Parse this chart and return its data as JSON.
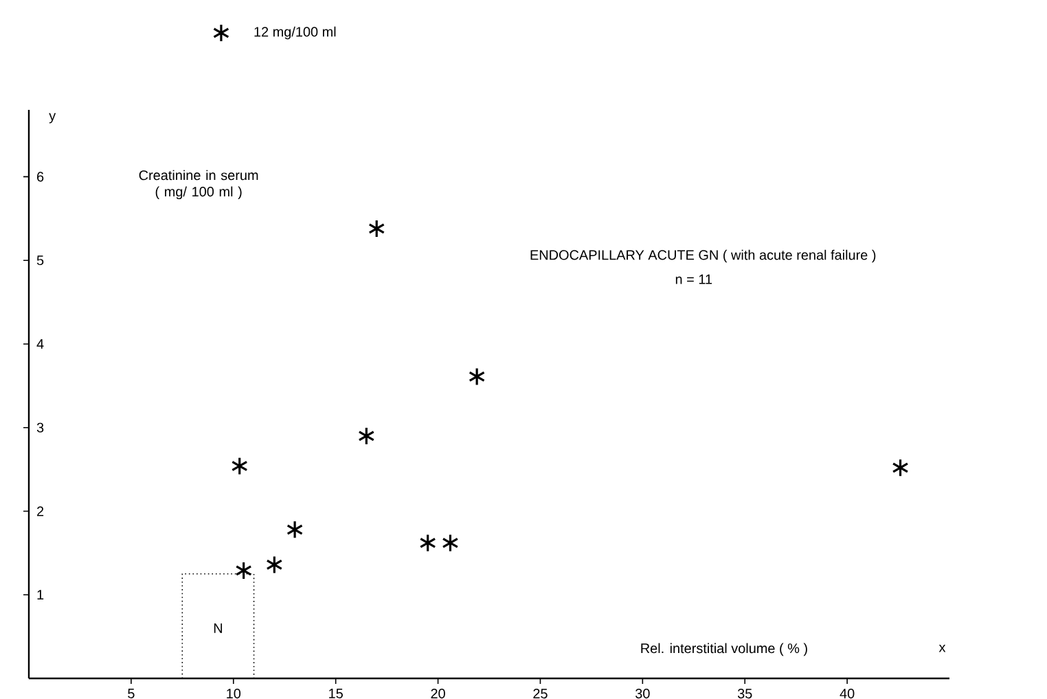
{
  "chart_data": {
    "type": "scatter",
    "title": "ENDOCAPILLARY  ACUTE  GN  ( with acute renal failure )",
    "subtitle": "n = 11",
    "xlabel": "Rel. interstitial volume ( % )",
    "ylabel": "Creatinine in serum ( mg/ 100 ml )",
    "xlim": [
      0,
      45
    ],
    "ylim": [
      0,
      6.8
    ],
    "xticks": [
      5,
      10,
      15,
      20,
      25,
      30,
      35,
      40
    ],
    "yticks": [
      1,
      2,
      3,
      4,
      5,
      6
    ],
    "marker": "cross",
    "grid": false,
    "series": [
      {
        "color": "#000000",
        "x": [
          10.3,
          10.5,
          12.0,
          13.0,
          16.5,
          17.0,
          19.5,
          20.6,
          21.9,
          42.6
        ],
        "values": [
          2.54,
          1.29,
          1.36,
          1.78,
          2.9,
          5.38,
          1.62,
          1.62,
          3.61,
          2.52
        ]
      },
      {
        "type": "line",
        "line_style": "dotted",
        "marker": "none",
        "color": "#000000",
        "x": [
          7.5,
          7.5,
          11.0,
          11.0
        ],
        "values": [
          0,
          1.25,
          1.25,
          0
        ]
      }
    ],
    "annotations": [
      "12 mg/100 ml",
      "y",
      "x",
      "N"
    ]
  }
}
